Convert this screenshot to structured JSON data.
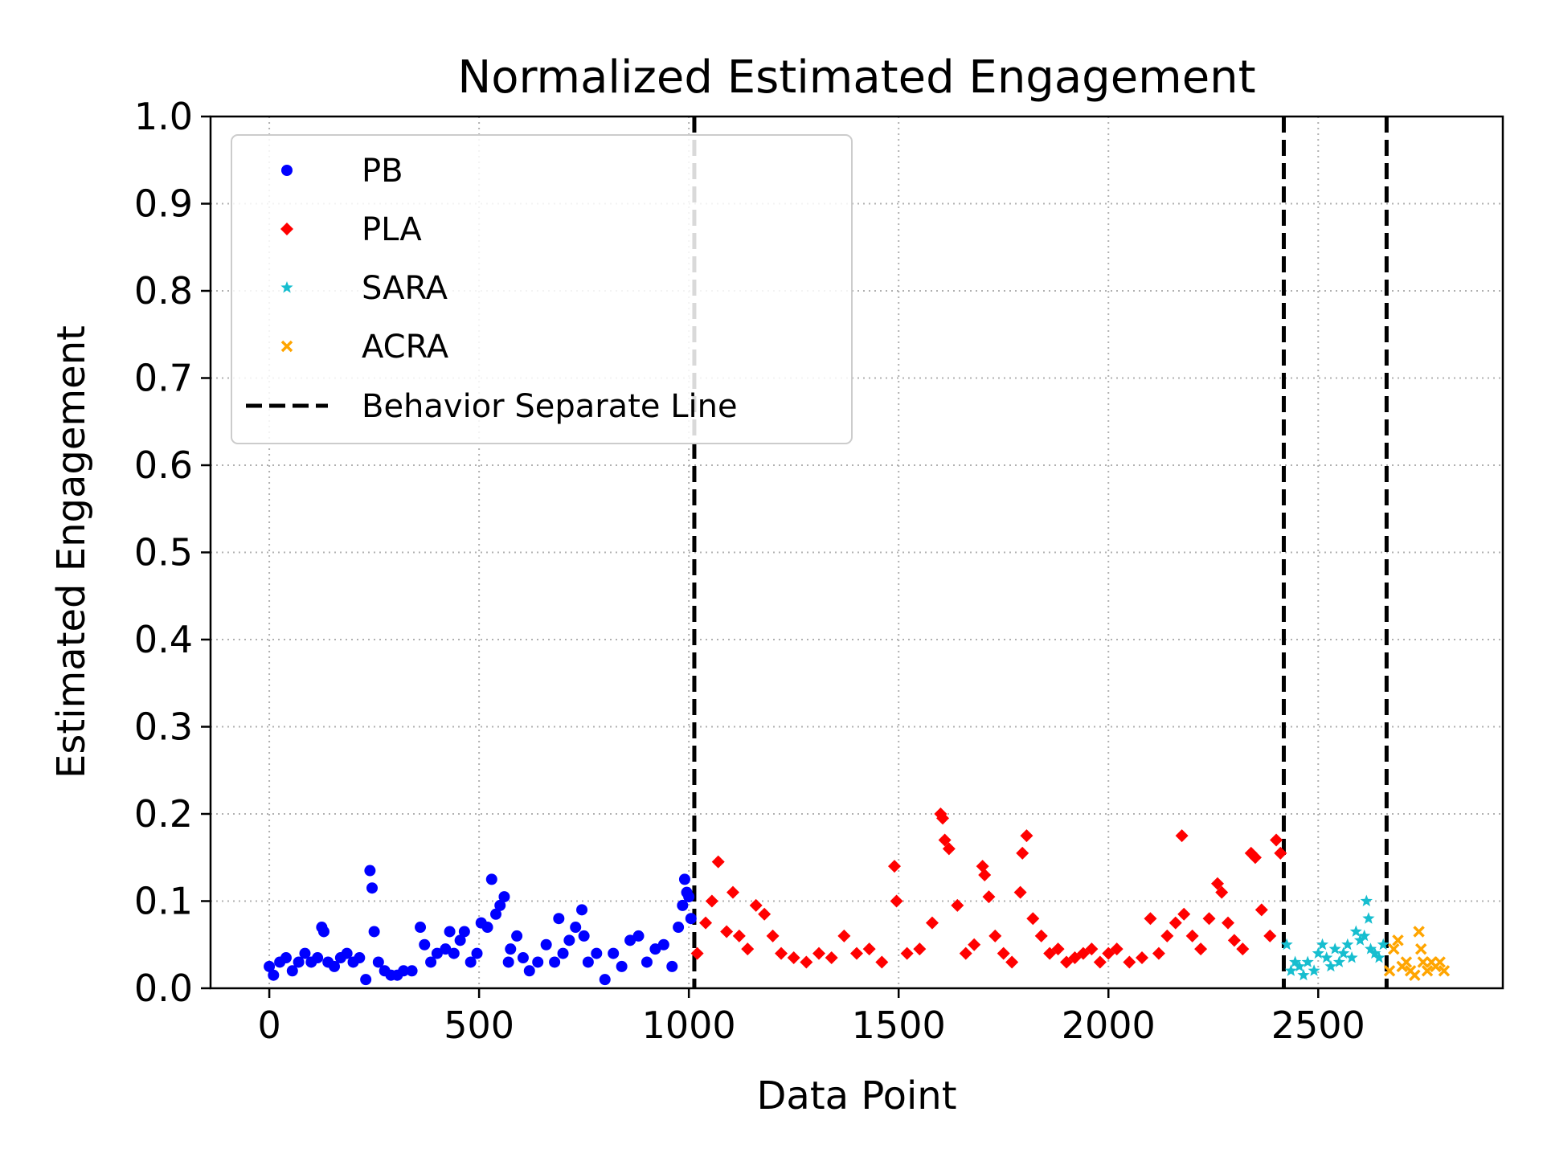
{
  "chart_data": {
    "type": "scatter",
    "title": "Normalized Estimated Engagement",
    "xlabel": "Data Point",
    "ylabel": "Estimated Engagement",
    "xlim": [
      -140,
      2940
    ],
    "ylim": [
      0.0,
      1.0
    ],
    "xticks": [
      0,
      500,
      1000,
      1500,
      2000,
      2500
    ],
    "xtick_labels": [
      "0",
      "500",
      "1000",
      "1500",
      "2000",
      "2500"
    ],
    "yticks": [
      0.0,
      0.1,
      0.2,
      0.3,
      0.4,
      0.5,
      0.6,
      0.7,
      0.8,
      0.9,
      1.0
    ],
    "ytick_labels": [
      "0.0",
      "0.1",
      "0.2",
      "0.3",
      "0.4",
      "0.5",
      "0.6",
      "0.7",
      "0.8",
      "0.9",
      "1.0"
    ],
    "grid": true,
    "legend_position": "top-left",
    "series": [
      {
        "name": "PB",
        "marker": "circle",
        "color": "#0000ff",
        "x": [
          0,
          10,
          25,
          40,
          55,
          70,
          85,
          100,
          115,
          125,
          130,
          140,
          155,
          170,
          185,
          200,
          215,
          230,
          240,
          245,
          250,
          260,
          275,
          290,
          305,
          320,
          340,
          360,
          370,
          385,
          400,
          420,
          430,
          440,
          455,
          465,
          480,
          495,
          505,
          520,
          530,
          540,
          550,
          560,
          570,
          575,
          590,
          605,
          620,
          640,
          660,
          680,
          690,
          700,
          715,
          730,
          745,
          750,
          760,
          780,
          800,
          820,
          840,
          860,
          880,
          900,
          920,
          940,
          960,
          975,
          985,
          990,
          995,
          1000,
          1005
        ],
        "y": [
          0.025,
          0.015,
          0.03,
          0.035,
          0.02,
          0.03,
          0.04,
          0.03,
          0.035,
          0.07,
          0.065,
          0.03,
          0.025,
          0.035,
          0.04,
          0.03,
          0.035,
          0.01,
          0.135,
          0.115,
          0.065,
          0.03,
          0.02,
          0.015,
          0.015,
          0.02,
          0.02,
          0.07,
          0.05,
          0.03,
          0.04,
          0.045,
          0.065,
          0.04,
          0.055,
          0.065,
          0.03,
          0.04,
          0.075,
          0.07,
          0.125,
          0.085,
          0.095,
          0.105,
          0.03,
          0.045,
          0.06,
          0.035,
          0.02,
          0.03,
          0.05,
          0.03,
          0.08,
          0.04,
          0.055,
          0.07,
          0.09,
          0.06,
          0.03,
          0.04,
          0.01,
          0.04,
          0.025,
          0.055,
          0.06,
          0.03,
          0.045,
          0.05,
          0.025,
          0.07,
          0.095,
          0.125,
          0.11,
          0.105,
          0.08
        ]
      },
      {
        "name": "PLA",
        "marker": "diamond",
        "color": "#ff0000",
        "x": [
          1020,
          1040,
          1055,
          1070,
          1090,
          1105,
          1120,
          1140,
          1160,
          1180,
          1200,
          1220,
          1250,
          1280,
          1310,
          1340,
          1370,
          1400,
          1430,
          1460,
          1490,
          1495,
          1520,
          1550,
          1580,
          1600,
          1605,
          1610,
          1620,
          1640,
          1660,
          1680,
          1700,
          1705,
          1715,
          1730,
          1750,
          1770,
          1790,
          1795,
          1805,
          1820,
          1840,
          1860,
          1880,
          1900,
          1920,
          1940,
          1960,
          1980,
          2000,
          2020,
          2050,
          2080,
          2100,
          2120,
          2140,
          2160,
          2175,
          2180,
          2200,
          2220,
          2240,
          2260,
          2270,
          2285,
          2300,
          2320,
          2340,
          2350,
          2365,
          2385,
          2400,
          2410
        ],
        "y": [
          0.04,
          0.075,
          0.1,
          0.145,
          0.065,
          0.11,
          0.06,
          0.045,
          0.095,
          0.085,
          0.06,
          0.04,
          0.035,
          0.03,
          0.04,
          0.035,
          0.06,
          0.04,
          0.045,
          0.03,
          0.14,
          0.1,
          0.04,
          0.045,
          0.075,
          0.2,
          0.195,
          0.17,
          0.16,
          0.095,
          0.04,
          0.05,
          0.14,
          0.13,
          0.105,
          0.06,
          0.04,
          0.03,
          0.11,
          0.155,
          0.175,
          0.08,
          0.06,
          0.04,
          0.045,
          0.03,
          0.035,
          0.04,
          0.045,
          0.03,
          0.04,
          0.045,
          0.03,
          0.035,
          0.08,
          0.04,
          0.06,
          0.075,
          0.175,
          0.085,
          0.06,
          0.045,
          0.08,
          0.12,
          0.11,
          0.075,
          0.055,
          0.045,
          0.155,
          0.15,
          0.09,
          0.06,
          0.17,
          0.155
        ]
      },
      {
        "name": "SARA",
        "marker": "star",
        "color": "#17becf",
        "x": [
          2425,
          2435,
          2445,
          2455,
          2465,
          2475,
          2490,
          2500,
          2510,
          2520,
          2530,
          2540,
          2550,
          2560,
          2570,
          2580,
          2590,
          2600,
          2610,
          2615,
          2620,
          2625,
          2635,
          2645,
          2655
        ],
        "y": [
          0.05,
          0.02,
          0.03,
          0.025,
          0.015,
          0.03,
          0.02,
          0.04,
          0.05,
          0.035,
          0.025,
          0.045,
          0.03,
          0.04,
          0.05,
          0.035,
          0.065,
          0.055,
          0.06,
          0.1,
          0.08,
          0.045,
          0.04,
          0.035,
          0.05
        ]
      },
      {
        "name": "ACRA",
        "marker": "x",
        "color": "#ffa500",
        "x": [
          2670,
          2680,
          2690,
          2700,
          2710,
          2720,
          2730,
          2740,
          2745,
          2750,
          2760,
          2770,
          2780,
          2790,
          2800
        ],
        "y": [
          0.02,
          0.045,
          0.055,
          0.025,
          0.03,
          0.02,
          0.015,
          0.065,
          0.045,
          0.03,
          0.02,
          0.03,
          0.025,
          0.03,
          0.02
        ]
      }
    ],
    "vlines": {
      "name": "Behavior Separate Line",
      "style": "dashed",
      "color": "#000000",
      "x": [
        1013,
        2418,
        2663
      ]
    }
  }
}
